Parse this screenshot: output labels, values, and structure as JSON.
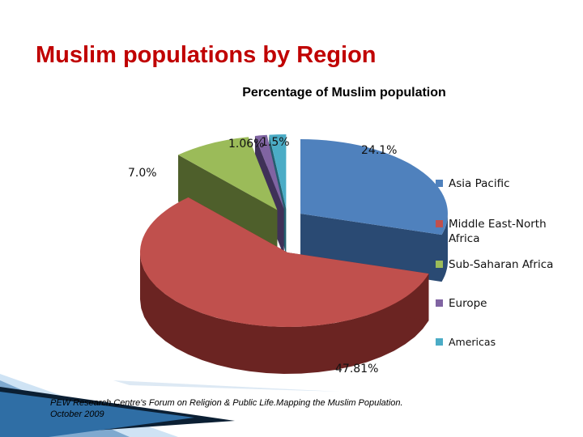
{
  "slide": {
    "title": "Muslim populations by Region",
    "source": "PEW Research Centre's Forum on Religion & Public Life.Mapping the Muslim Population. October 2009"
  },
  "chart_data": {
    "type": "pie",
    "title": "Percentage of Muslim population",
    "three_d": true,
    "legend_position": "right",
    "series": [
      {
        "name": "Asia Pacific",
        "value": 24.1,
        "label": "24.1%",
        "color": "#4f81bd",
        "side_color": "#2a4a73"
      },
      {
        "name": "Middle East-North Africa",
        "value": 47.81,
        "label": "47.81%",
        "color": "#c0504d",
        "side_color": "#6b2422"
      },
      {
        "name": "Sub-Saharan Africa",
        "value": 7.0,
        "label": "7.0%",
        "color": "#9bbb59",
        "side_color": "#4e5f2b"
      },
      {
        "name": "Europe",
        "value": 1.06,
        "label": "1.06%",
        "color": "#8064a2",
        "side_color": "#3f3158"
      },
      {
        "name": "Americas",
        "value": 1.5,
        "label": "1.5%",
        "color": "#4bacc6",
        "side_color": "#236070"
      }
    ]
  }
}
